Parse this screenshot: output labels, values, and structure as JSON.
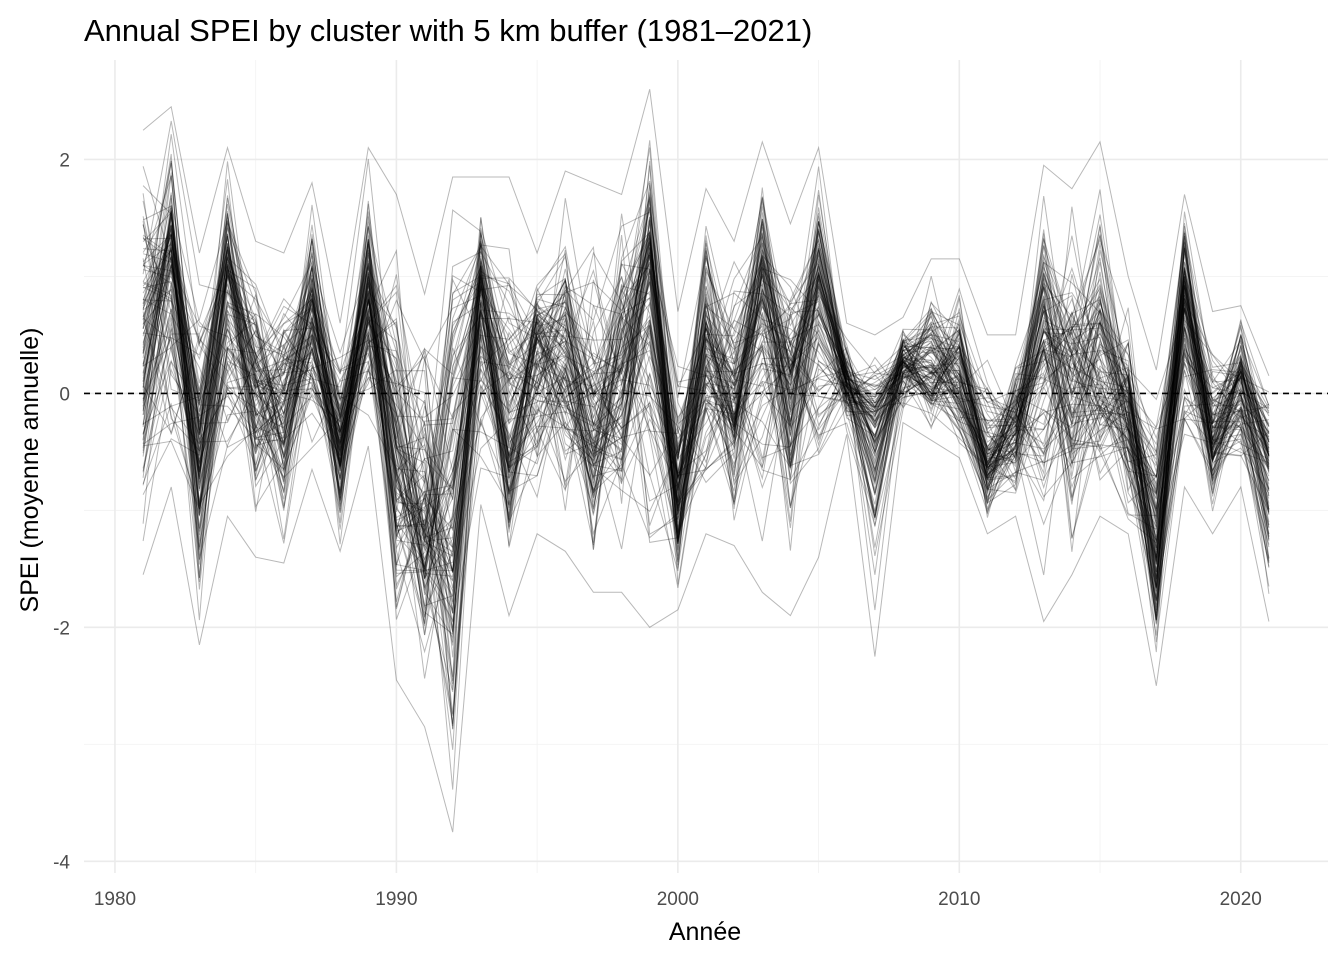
{
  "chart_data": {
    "type": "line",
    "title": "Annual SPEI by cluster with 5 km buffer (1981–2021)",
    "xlabel": "Année",
    "ylabel": "SPEI (moyenne annuelle)",
    "xlim": [
      1978.9,
      2023.1
    ],
    "ylim": [
      -4.1,
      2.85
    ],
    "x_ticks": [
      1980,
      1990,
      2000,
      2010,
      2020
    ],
    "x_tick_labels": [
      "1980",
      "1990",
      "2000",
      "2010",
      "2020"
    ],
    "y_ticks": [
      -4,
      -2,
      0,
      2
    ],
    "y_tick_labels": [
      "-4",
      "-2",
      "0",
      "2"
    ],
    "reference_line": {
      "y": 0,
      "style": "dashed"
    },
    "series_count": 120,
    "x": [
      1981,
      1982,
      1983,
      1984,
      1985,
      1986,
      1987,
      1988,
      1989,
      1990,
      1991,
      1992,
      1993,
      1994,
      1995,
      1996,
      1997,
      1998,
      1999,
      2000,
      2001,
      2002,
      2003,
      2004,
      2005,
      2006,
      2007,
      2008,
      2009,
      2010,
      2011,
      2012,
      2013,
      2014,
      2015,
      2016,
      2017,
      2018,
      2019,
      2020,
      2021
    ],
    "mean": [
      0.35,
      1.15,
      -0.55,
      1.0,
      0.0,
      -0.05,
      0.65,
      -0.45,
      0.9,
      -0.65,
      -1.05,
      -0.85,
      0.85,
      -0.45,
      0.45,
      0.2,
      -0.35,
      0.1,
      1.05,
      -0.85,
      0.35,
      -0.15,
      1.0,
      0.05,
      0.9,
      0.1,
      -0.3,
      0.25,
      0.2,
      0.1,
      -0.6,
      -0.25,
      0.5,
      0.15,
      0.2,
      -0.25,
      -1.35,
      0.7,
      -0.45,
      0.1,
      -0.55
    ],
    "min": [
      -1.55,
      -0.8,
      -2.15,
      -1.05,
      -1.4,
      -1.45,
      -0.65,
      -1.35,
      -0.45,
      -2.45,
      -2.85,
      -3.75,
      -0.95,
      -1.9,
      -1.2,
      -1.35,
      -1.7,
      -1.7,
      -2.0,
      -1.85,
      -1.2,
      -1.3,
      -1.7,
      -1.9,
      -1.4,
      -0.35,
      -2.25,
      -0.25,
      -0.4,
      -0.55,
      -1.2,
      -1.05,
      -1.95,
      -1.55,
      -1.05,
      -1.2,
      -2.5,
      -0.8,
      -1.2,
      -0.8,
      -1.95
    ],
    "max": [
      2.25,
      2.45,
      1.2,
      2.1,
      1.3,
      1.2,
      1.8,
      0.6,
      2.1,
      1.7,
      0.85,
      1.85,
      1.85,
      1.85,
      1.2,
      1.9,
      1.8,
      1.7,
      2.6,
      0.7,
      1.75,
      1.3,
      2.15,
      1.45,
      2.1,
      0.6,
      0.5,
      0.65,
      1.15,
      1.15,
      0.5,
      0.5,
      1.95,
      1.75,
      2.15,
      1.0,
      0.2,
      1.7,
      0.7,
      0.75,
      0.15
    ]
  }
}
